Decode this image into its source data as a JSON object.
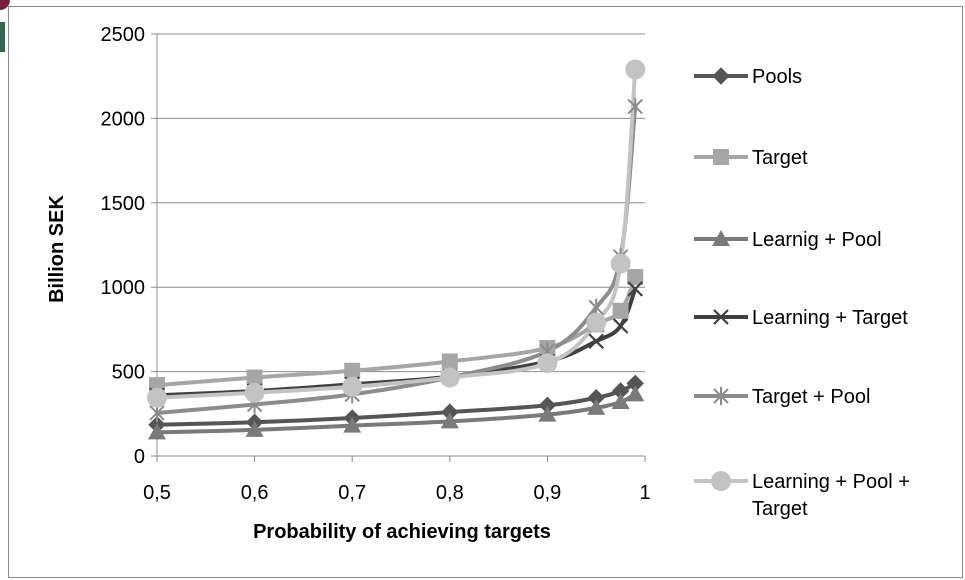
{
  "chart_data": {
    "type": "line",
    "title": "",
    "xlabel": "Probability of achieving targets",
    "ylabel": "Billion SEK",
    "xlim": [
      0.5,
      1
    ],
    "ylim": [
      0,
      2500
    ],
    "x_ticks": [
      {
        "value": 0.5,
        "label": "0,5"
      },
      {
        "value": 0.6,
        "label": "0,6"
      },
      {
        "value": 0.7,
        "label": "0,7"
      },
      {
        "value": 0.8,
        "label": "0,8"
      },
      {
        "value": 0.9,
        "label": "0,9"
      },
      {
        "value": 1.0,
        "label": "1"
      }
    ],
    "y_ticks": [
      {
        "value": 0,
        "label": "0"
      },
      {
        "value": 500,
        "label": "500"
      },
      {
        "value": 1000,
        "label": "1000"
      },
      {
        "value": 1500,
        "label": "1500"
      },
      {
        "value": 2000,
        "label": "2000"
      },
      {
        "value": 2500,
        "label": "2500"
      }
    ],
    "grid": "horizontal",
    "legend_position": "right",
    "x": [
      0.5,
      0.6,
      0.7,
      0.8,
      0.9,
      0.95,
      0.975,
      0.99
    ],
    "series": [
      {
        "name": "Pools",
        "marker": "diamond",
        "color": "#555555",
        "values": [
          185,
          200,
          225,
          260,
          300,
          345,
          385,
          430
        ]
      },
      {
        "name": "Target",
        "marker": "square",
        "color": "#a6a6a6",
        "values": [
          420,
          465,
          505,
          560,
          640,
          780,
          860,
          1060
        ]
      },
      {
        "name": "Learnig + Pool",
        "marker": "triangle",
        "color": "#7a7a7a",
        "values": [
          140,
          155,
          180,
          205,
          245,
          285,
          320,
          365
        ]
      },
      {
        "name": "Learning + Target",
        "marker": "x",
        "color": "#404040",
        "values": [
          360,
          385,
          425,
          470,
          560,
          680,
          770,
          990
        ]
      },
      {
        "name": "Target + Pool",
        "marker": "star",
        "color": "#8c8c8c",
        "values": [
          255,
          305,
          365,
          465,
          620,
          880,
          1180,
          2070
        ]
      },
      {
        "name": "Learning + Pool + Target",
        "marker": "circle",
        "color": "#c3c3c3",
        "values": [
          345,
          375,
          410,
          465,
          550,
          790,
          1140,
          2290
        ]
      }
    ]
  }
}
